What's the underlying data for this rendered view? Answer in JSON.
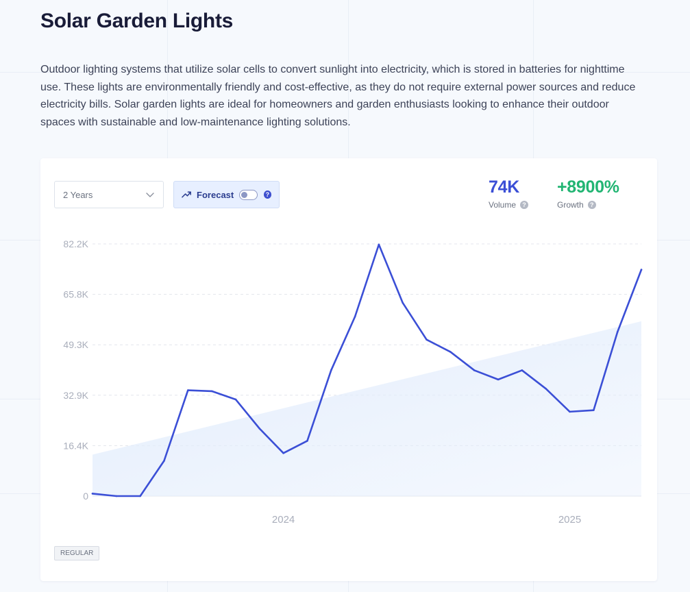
{
  "page": {
    "title": "Solar Garden Lights",
    "description": "Outdoor lighting systems that utilize solar cells to convert sunlight into electricity, which is stored in batteries for nighttime use. These lights are environmentally friendly and cost-effective, as they do not require external power sources and reduce electricity bills. Solar garden lights are ideal for homeowners and garden enthusiasts looking to enhance their outdoor spaces with sustainable and low-maintenance lighting solutions."
  },
  "controls": {
    "range_label": "2 Years",
    "forecast_label": "Forecast",
    "forecast_enabled": false,
    "help_glyph": "?"
  },
  "metrics": {
    "volume_value": "74K",
    "volume_label": "Volume",
    "growth_value": "+8900%",
    "growth_label": "Growth"
  },
  "tag": "REGULAR",
  "colors": {
    "line": "#3b4fd6",
    "trend_fill": "#e3edfc",
    "volume": "#3b4fd6",
    "growth": "#22b573",
    "forecast_bg": "#e7efff"
  },
  "icons": [
    "chevron-down-icon",
    "trend-up-icon",
    "help-icon"
  ],
  "chart_data": {
    "type": "line",
    "title": "",
    "xlabel": "",
    "ylabel": "",
    "ylim": [
      0,
      82200
    ],
    "y_ticks": [
      "0",
      "16.4K",
      "32.9K",
      "49.3K",
      "65.8K",
      "82.2K"
    ],
    "y_tick_values": [
      0,
      16440,
      32880,
      49320,
      65760,
      82200
    ],
    "x_ticks": [
      "2024",
      "2025"
    ],
    "x_tick_index": [
      8,
      20
    ],
    "grid": true,
    "legend": "none",
    "series": [
      {
        "values": [
          800,
          0,
          0,
          11500,
          34500,
          34200,
          31500,
          22000,
          14000,
          18000,
          41000,
          58500,
          82000,
          63000,
          51000,
          47000,
          41000,
          38000,
          41000,
          35000,
          27500,
          28000,
          53500,
          73800
        ]
      }
    ],
    "trend_band": {
      "start": 13500,
      "end": 57000
    }
  }
}
